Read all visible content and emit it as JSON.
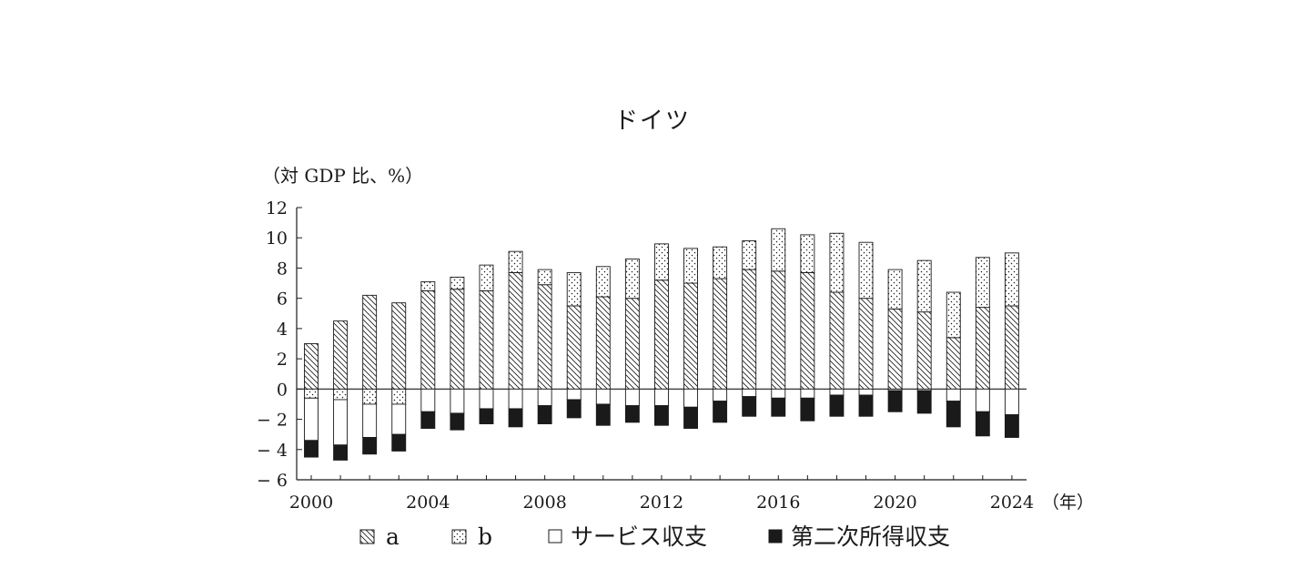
{
  "chart_data": {
    "type": "bar",
    "stacked": true,
    "title": "ドイツ",
    "ylabel": "（対 GDP 比、%）",
    "xunit": "（年）",
    "ylim": [
      -6,
      12
    ],
    "yticks": [
      "12",
      "10",
      "8",
      "6",
      "4",
      "2",
      "0",
      "− 2",
      "− 4",
      "− 6"
    ],
    "ytick_values": [
      12,
      10,
      8,
      6,
      4,
      2,
      0,
      -2,
      -4,
      -6
    ],
    "xtick_labels": [
      "2000",
      "2004",
      "2008",
      "2012",
      "2016",
      "2020",
      "2024"
    ],
    "categories": [
      "2000",
      "2001",
      "2002",
      "2003",
      "2004",
      "2005",
      "2006",
      "2007",
      "2008",
      "2009",
      "2010",
      "2011",
      "2012",
      "2013",
      "2014",
      "2015",
      "2016",
      "2017",
      "2018",
      "2019",
      "2020",
      "2021",
      "2022",
      "2023",
      "2024"
    ],
    "series": [
      {
        "name": "a",
        "pattern": "hatch",
        "values": [
          3.0,
          4.5,
          6.2,
          5.7,
          6.5,
          6.6,
          6.5,
          7.7,
          6.9,
          5.5,
          6.1,
          6.0,
          7.2,
          7.0,
          7.3,
          7.9,
          7.8,
          7.7,
          6.4,
          6.0,
          5.3,
          5.1,
          3.4,
          5.4,
          5.5
        ]
      },
      {
        "name": "b",
        "pattern": "dots",
        "values": [
          -0.6,
          -0.7,
          -1.0,
          -1.0,
          0.6,
          0.8,
          1.7,
          1.4,
          1.0,
          2.2,
          2.0,
          2.6,
          2.4,
          2.3,
          2.1,
          1.9,
          2.8,
          2.5,
          3.9,
          3.7,
          2.6,
          3.4,
          3.0,
          3.3,
          3.5
        ]
      },
      {
        "name": "サービス収支",
        "pattern": "white",
        "values": [
          -2.8,
          -3.0,
          -2.2,
          -2.0,
          -1.5,
          -1.6,
          -1.3,
          -1.3,
          -1.1,
          -0.7,
          -1.0,
          -1.1,
          -1.1,
          -1.2,
          -0.8,
          -0.5,
          -0.6,
          -0.6,
          -0.4,
          -0.4,
          -0.1,
          -0.1,
          -0.8,
          -1.5,
          -1.7
        ]
      },
      {
        "name": "第二次所得収支",
        "pattern": "black",
        "values": [
          -1.1,
          -1.0,
          -1.1,
          -1.1,
          -1.1,
          -1.1,
          -1.0,
          -1.2,
          -1.2,
          -1.2,
          -1.4,
          -1.1,
          -1.3,
          -1.4,
          -1.4,
          -1.3,
          -1.2,
          -1.5,
          -1.4,
          -1.4,
          -1.4,
          -1.5,
          -1.7,
          -1.6,
          -1.5
        ]
      }
    ],
    "colors": {
      "ink": "#1a1a1a",
      "paper": "#ffffff"
    },
    "legend_position": "bottom",
    "grid": false
  }
}
